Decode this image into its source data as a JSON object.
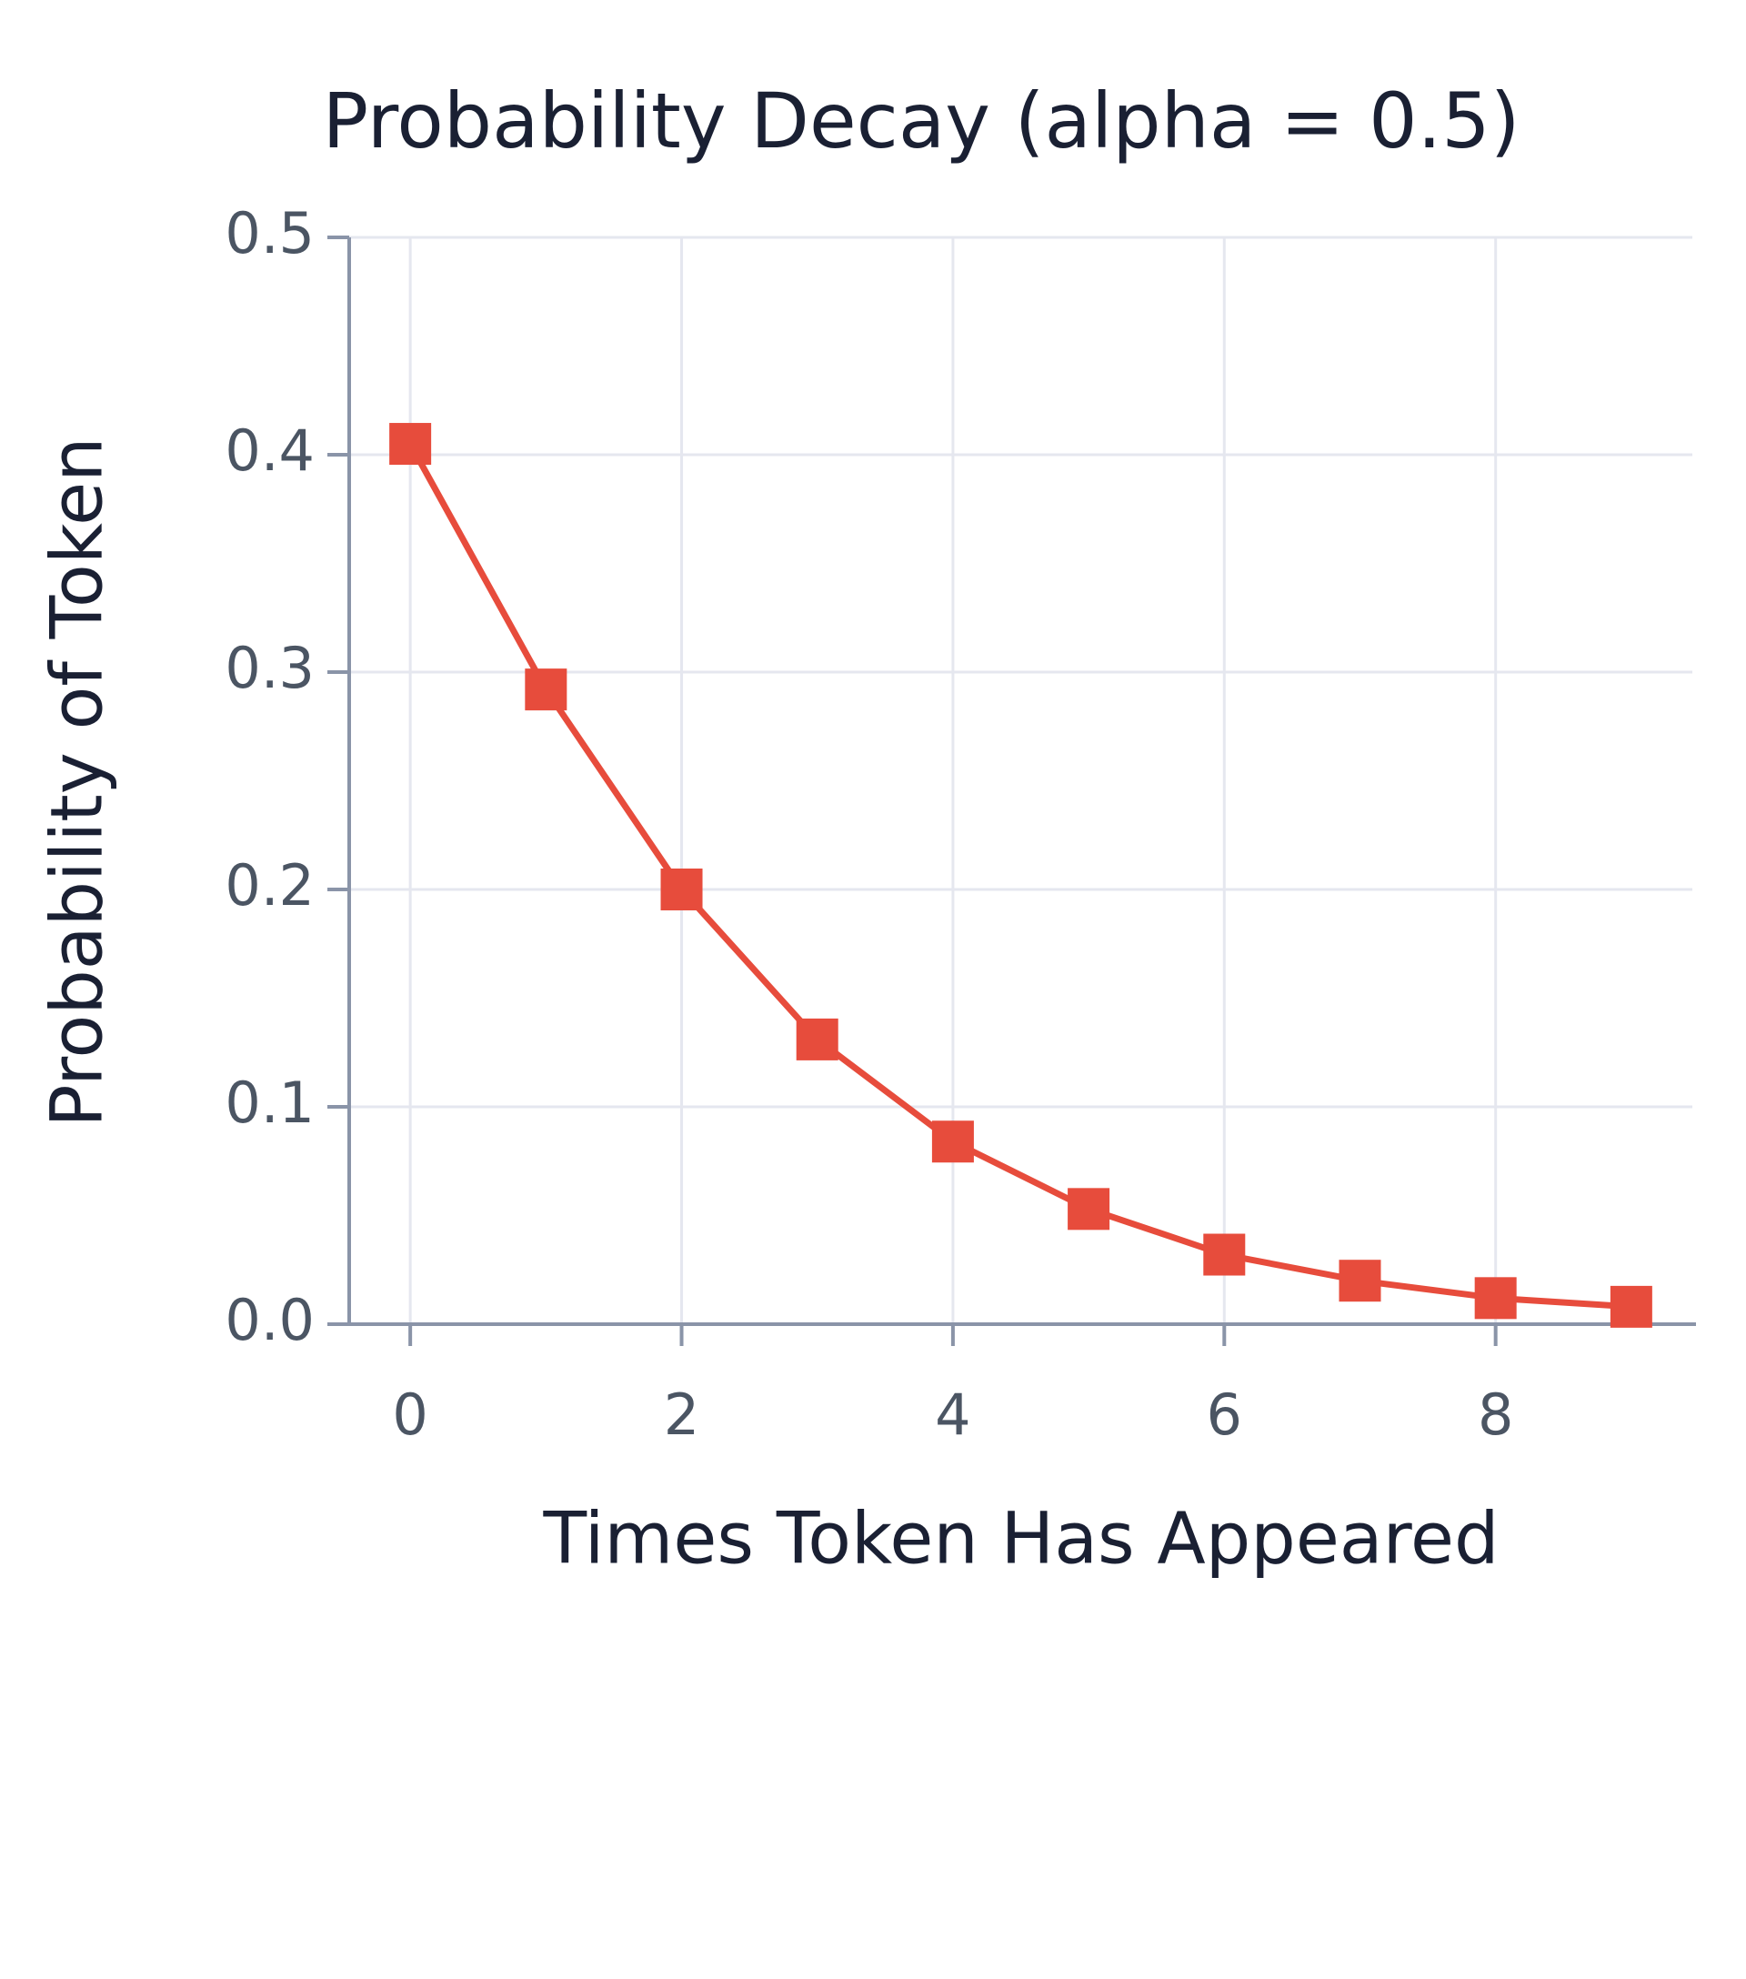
{
  "chart_data": {
    "type": "line",
    "title": "Probability Decay (alpha = 0.5)",
    "x_label": "Times Token Has Appeared",
    "y_label": "Probability of Token",
    "x": [
      0,
      1,
      2,
      3,
      4,
      5,
      6,
      7,
      8,
      9
    ],
    "series": [
      {
        "name": "Probability",
        "color": "#e74c3c",
        "values": [
          0.405,
          0.292,
          0.2,
          0.131,
          0.084,
          0.053,
          0.032,
          0.02,
          0.012,
          0.008
        ]
      }
    ],
    "xlim": [
      -0.45,
      9.45
    ],
    "xticks": [
      0,
      2,
      4,
      6,
      8
    ],
    "ylim": [
      0,
      0.5
    ],
    "yticks": [
      {
        "value": 0,
        "label": "0.0"
      },
      0.1,
      0.2,
      0.3,
      0.4,
      0.5
    ],
    "grid": true,
    "marker": "square"
  }
}
